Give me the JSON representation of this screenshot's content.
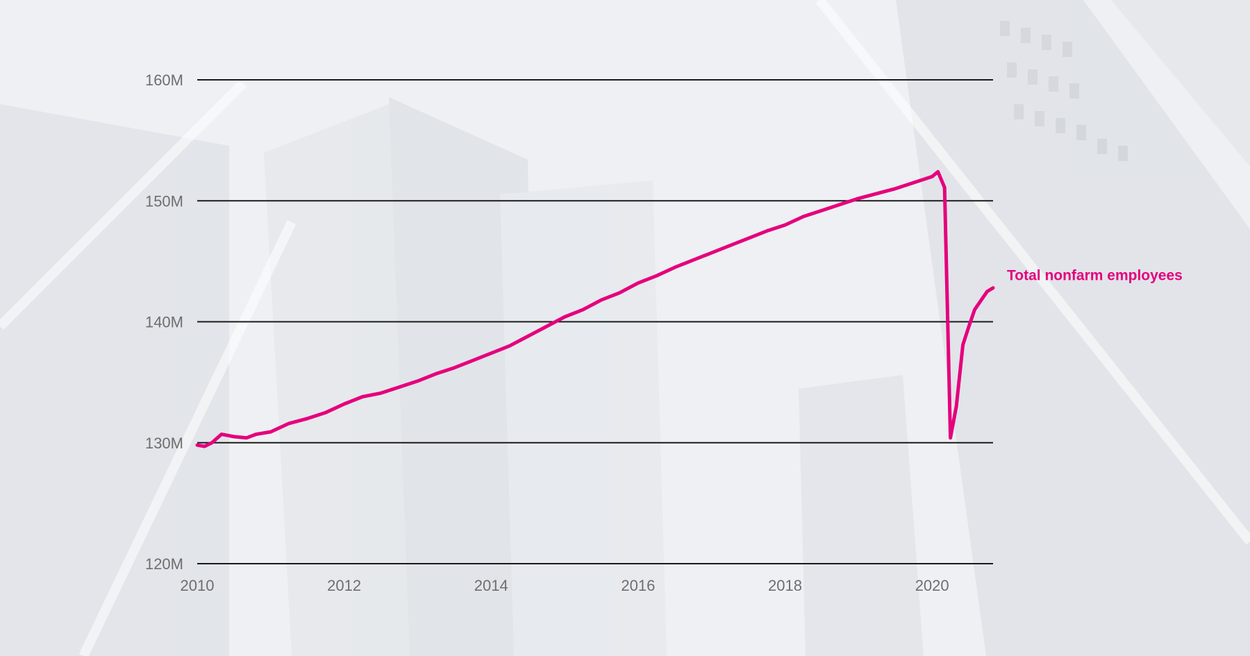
{
  "chart_data": {
    "type": "line",
    "title": "",
    "xlabel": "",
    "ylabel": "",
    "xlim": [
      2010,
      2020.83
    ],
    "ylim": [
      120,
      160
    ],
    "x_ticks": [
      {
        "value": 2010,
        "label": "2010"
      },
      {
        "value": 2012,
        "label": "2012"
      },
      {
        "value": 2014,
        "label": "2014"
      },
      {
        "value": 2016,
        "label": "2016"
      },
      {
        "value": 2018,
        "label": "2018"
      },
      {
        "value": 2020,
        "label": "2020"
      }
    ],
    "y_ticks": [
      {
        "value": 120,
        "label": "120M"
      },
      {
        "value": 130,
        "label": "130M"
      },
      {
        "value": 140,
        "label": "140M"
      },
      {
        "value": 150,
        "label": "150M"
      },
      {
        "value": 160,
        "label": "160M"
      }
    ],
    "grid": "horizontal",
    "colors": {
      "series": "#e5007d",
      "grid": "#1a1a1a",
      "tick_text": "#6e6e6e"
    },
    "series": [
      {
        "name": "Total nonfarm employees",
        "points": [
          [
            2010.0,
            129.8
          ],
          [
            2010.1,
            129.7
          ],
          [
            2010.2,
            130.0
          ],
          [
            2010.33,
            130.7
          ],
          [
            2010.5,
            130.5
          ],
          [
            2010.67,
            130.4
          ],
          [
            2010.8,
            130.7
          ],
          [
            2011.0,
            130.9
          ],
          [
            2011.25,
            131.6
          ],
          [
            2011.5,
            132.0
          ],
          [
            2011.75,
            132.5
          ],
          [
            2012.0,
            133.2
          ],
          [
            2012.25,
            133.8
          ],
          [
            2012.5,
            134.1
          ],
          [
            2012.75,
            134.6
          ],
          [
            2013.0,
            135.1
          ],
          [
            2013.25,
            135.7
          ],
          [
            2013.5,
            136.2
          ],
          [
            2013.75,
            136.8
          ],
          [
            2014.0,
            137.4
          ],
          [
            2014.25,
            138.0
          ],
          [
            2014.5,
            138.8
          ],
          [
            2014.75,
            139.6
          ],
          [
            2015.0,
            140.4
          ],
          [
            2015.25,
            141.0
          ],
          [
            2015.5,
            141.8
          ],
          [
            2015.75,
            142.4
          ],
          [
            2016.0,
            143.2
          ],
          [
            2016.25,
            143.8
          ],
          [
            2016.5,
            144.5
          ],
          [
            2016.75,
            145.1
          ],
          [
            2017.0,
            145.7
          ],
          [
            2017.25,
            146.3
          ],
          [
            2017.5,
            146.9
          ],
          [
            2017.75,
            147.5
          ],
          [
            2018.0,
            148.0
          ],
          [
            2018.25,
            148.7
          ],
          [
            2018.5,
            149.2
          ],
          [
            2018.75,
            149.7
          ],
          [
            2019.0,
            150.2
          ],
          [
            2019.25,
            150.6
          ],
          [
            2019.5,
            151.0
          ],
          [
            2019.75,
            151.5
          ],
          [
            2020.0,
            152.0
          ],
          [
            2020.08,
            152.4
          ],
          [
            2020.17,
            151.1
          ],
          [
            2020.25,
            130.4
          ],
          [
            2020.33,
            133.0
          ],
          [
            2020.42,
            138.1
          ],
          [
            2020.5,
            139.6
          ],
          [
            2020.58,
            141.0
          ],
          [
            2020.67,
            141.8
          ],
          [
            2020.75,
            142.5
          ],
          [
            2020.83,
            142.8
          ]
        ]
      }
    ]
  }
}
